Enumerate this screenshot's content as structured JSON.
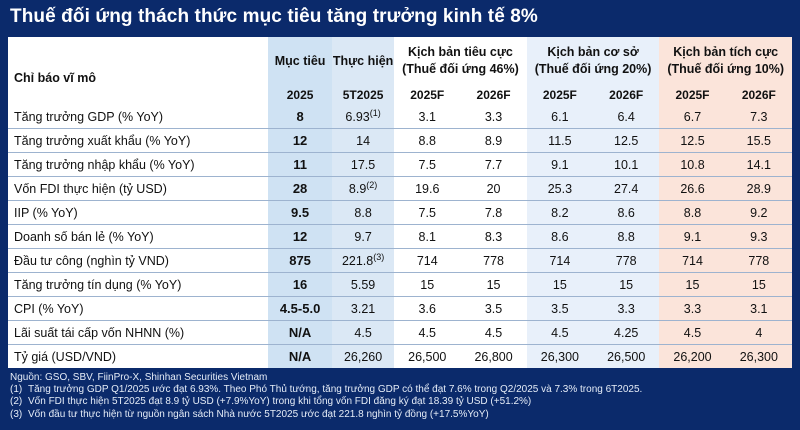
{
  "title": "Thuế đối ứng thách thức mục tiêu tăng trưởng kinh tế 8%",
  "headers": {
    "indicator": "Chỉ báo vĩ mô",
    "goal": "Mục tiêu",
    "goal_year": "2025",
    "actual": "Thực hiện",
    "actual_period": "5T2025",
    "negative_l1": "Kịch bản tiêu cực",
    "negative_l2": "(Thuế đối ứng 46%)",
    "base_l1": "Kịch bản cơ sở",
    "base_l2": "(Thuế đối ứng 20%)",
    "positive_l1": "Kịch bản tích cực",
    "positive_l2": "(Thuế đối ứng 10%)",
    "y2025": "2025F",
    "y2026": "2026F"
  },
  "rows": [
    {
      "indicator": "Tăng trưởng GDP (% YoY)",
      "goal": "8",
      "actual": "6.93",
      "actual_note": "(1)",
      "neg25": "3.1",
      "neg26": "3.3",
      "base25": "6.1",
      "base26": "6.4",
      "pos25": "6.7",
      "pos26": "7.3"
    },
    {
      "indicator": "Tăng trưởng xuất khẩu (% YoY)",
      "goal": "12",
      "actual": "14",
      "actual_note": "",
      "neg25": "8.8",
      "neg26": "8.9",
      "base25": "11.5",
      "base26": "12.5",
      "pos25": "12.5",
      "pos26": "15.5"
    },
    {
      "indicator": "Tăng trưởng nhập khẩu (% YoY)",
      "goal": "11",
      "actual": "17.5",
      "actual_note": "",
      "neg25": "7.5",
      "neg26": "7.7",
      "base25": "9.1",
      "base26": "10.1",
      "pos25": "10.8",
      "pos26": "14.1"
    },
    {
      "indicator": "Vốn FDI thực hiện (tỷ USD)",
      "goal": "28",
      "actual": "8.9",
      "actual_note": "(2)",
      "neg25": "19.6",
      "neg26": "20",
      "base25": "25.3",
      "base26": "27.4",
      "pos25": "26.6",
      "pos26": "28.9"
    },
    {
      "indicator": "IIP (% YoY)",
      "goal": "9.5",
      "actual": "8.8",
      "actual_note": "",
      "neg25": "7.5",
      "neg26": "7.8",
      "base25": "8.2",
      "base26": "8.6",
      "pos25": "8.8",
      "pos26": "9.2"
    },
    {
      "indicator": "Doanh số bán lẻ (% YoY)",
      "goal": "12",
      "actual": "9.7",
      "actual_note": "",
      "neg25": "8.1",
      "neg26": "8.3",
      "base25": "8.6",
      "base26": "8.8",
      "pos25": "9.1",
      "pos26": "9.3"
    },
    {
      "indicator": "Đầu tư công (nghìn tỷ VND)",
      "goal": "875",
      "actual": "221.8",
      "actual_note": "(3)",
      "neg25": "714",
      "neg26": "778",
      "base25": "714",
      "base26": "778",
      "pos25": "714",
      "pos26": "778"
    },
    {
      "indicator": "Tăng trưởng tín dụng (% YoY)",
      "goal": "16",
      "actual": "5.59",
      "actual_note": "",
      "neg25": "15",
      "neg26": "15",
      "base25": "15",
      "base26": "15",
      "pos25": "15",
      "pos26": "15"
    },
    {
      "indicator": "CPI (% YoY)",
      "goal": "4.5-5.0",
      "actual": "3.21",
      "actual_note": "",
      "neg25": "3.6",
      "neg26": "3.5",
      "base25": "3.5",
      "base26": "3.3",
      "pos25": "3.3",
      "pos26": "3.1"
    },
    {
      "indicator": "Lãi suất tái cấp vốn NHNN (%)",
      "goal": "N/A",
      "actual": "4.5",
      "actual_note": "",
      "neg25": "4.5",
      "neg26": "4.5",
      "base25": "4.5",
      "base26": "4.25",
      "pos25": "4.5",
      "pos26": "4"
    },
    {
      "indicator": "Tỷ giá (USD/VND)",
      "goal": "N/A",
      "actual": "26,260",
      "actual_note": "",
      "neg25": "26,500",
      "neg26": "26,800",
      "base25": "26,300",
      "base26": "26,500",
      "pos25": "26,200",
      "pos26": "26,300"
    }
  ],
  "footer": {
    "source": "Nguồn: GSO, SBV, FiinPro-X, Shinhan Securities Vietnam",
    "notes": [
      {
        "num": "(1)",
        "text": "Tăng trưởng GDP Q1/2025 ước đạt 6.93%. Theo Phó Thủ tướng, tăng trưởng GDP có thể đạt 7.6% trong Q2/2025 và 7.3% trong 6T2025."
      },
      {
        "num": "(2)",
        "text": "Vốn FDI thực hiện 5T2025 đạt 8.9 tỷ USD (+7.9%YoY) trong khi tổng vốn FDI đăng ký đạt 18.39 tỷ USD (+51.2%)"
      },
      {
        "num": "(3)",
        "text": "Vốn đầu tư thực hiện từ nguồn ngân sách Nhà nước 5T2025 ước đạt 221.8 nghìn tỷ đồng (+17.5%YoY)"
      }
    ]
  }
}
